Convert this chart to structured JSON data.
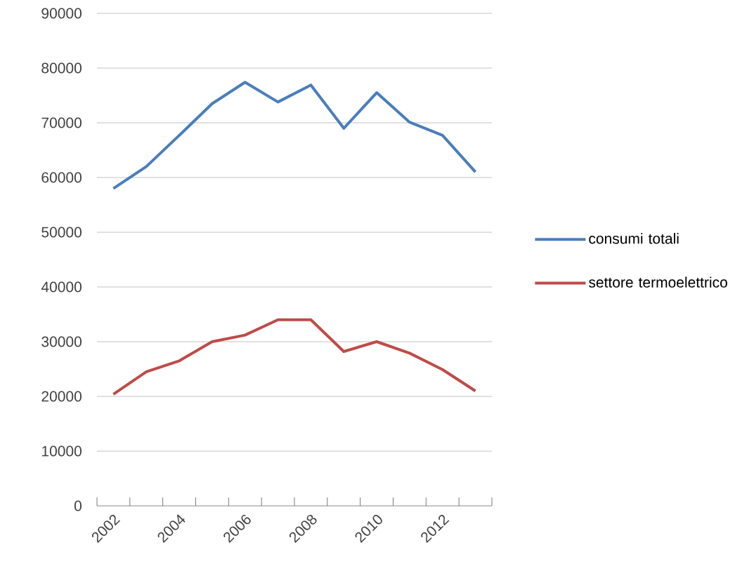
{
  "chart_data": {
    "type": "line",
    "categories": [
      "2002",
      null,
      "2004",
      null,
      "2006",
      null,
      "2008",
      null,
      "2010",
      null,
      "2012",
      null
    ],
    "series": [
      {
        "name": "consumi totali",
        "color": "#4a7ebb",
        "values": [
          58000,
          62000,
          67700,
          73500,
          77400,
          73800,
          76900,
          69000,
          75500,
          70100,
          67700,
          61000
        ]
      },
      {
        "name": "settore termoelettrico",
        "color": "#be4b48",
        "values": [
          20400,
          24500,
          26500,
          30000,
          31200,
          34000,
          34000,
          28200,
          30000,
          27900,
          24900,
          21000
        ]
      }
    ],
    "ylim": [
      0,
      90000
    ],
    "yticks": [
      0,
      10000,
      20000,
      30000,
      40000,
      50000,
      60000,
      70000,
      80000,
      90000
    ],
    "grid": "y",
    "legend": "right",
    "marker": "none",
    "line_style": "solid"
  }
}
